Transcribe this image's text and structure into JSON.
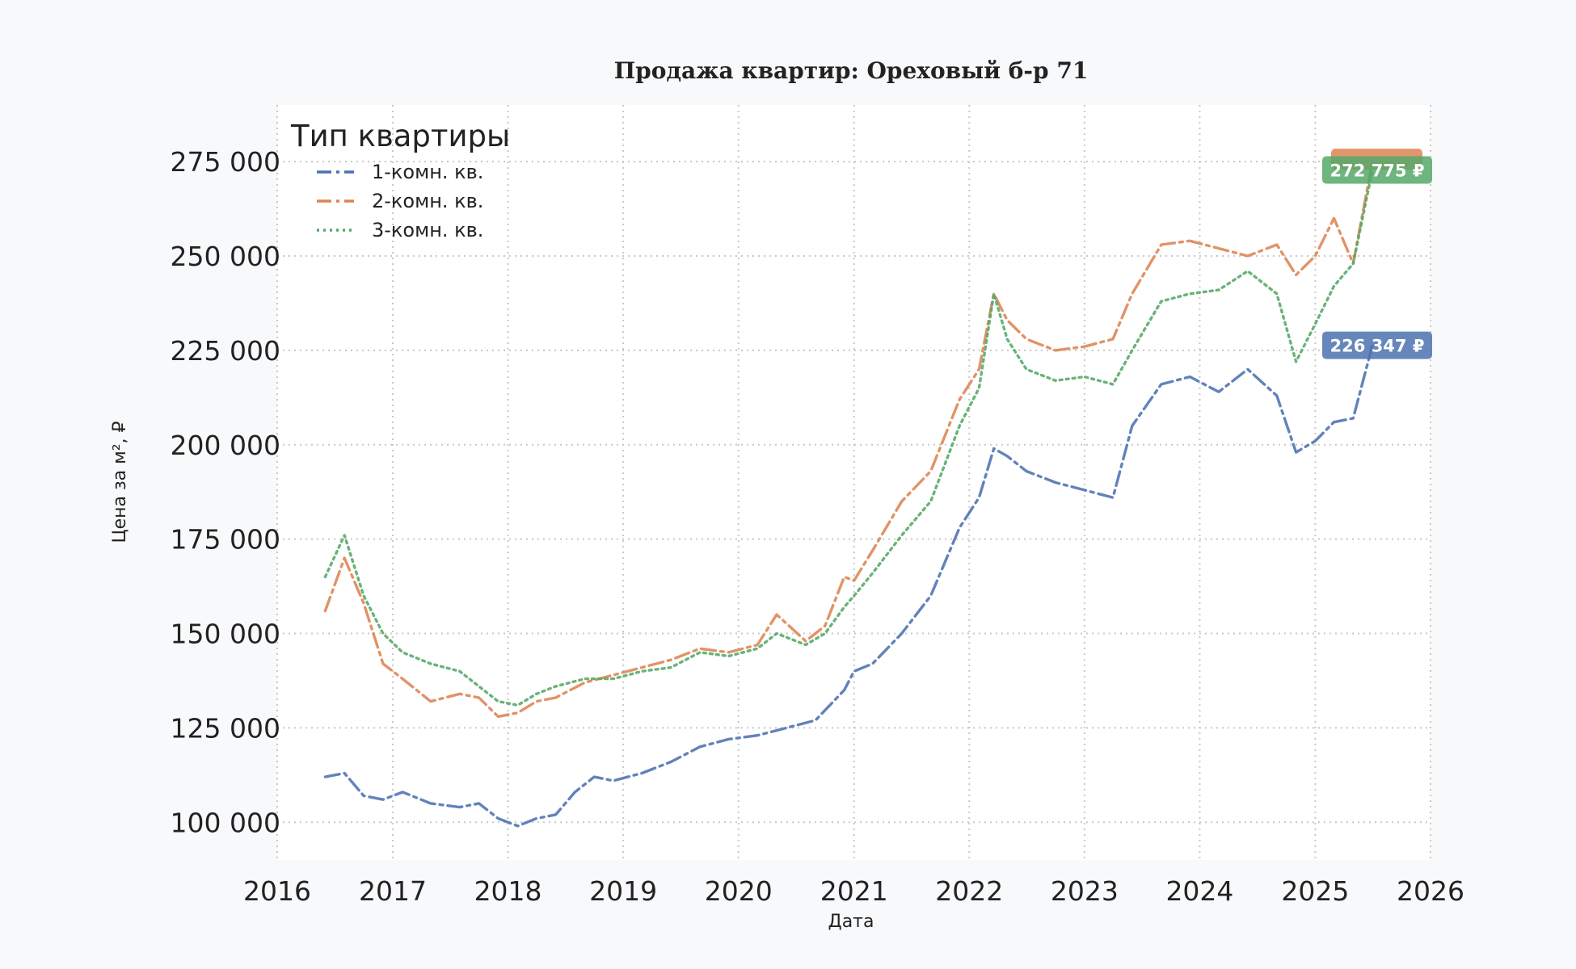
{
  "chart_data": {
    "type": "line",
    "title": "Продажа квартир: Ореховый б-р 71",
    "xlabel": "Дата",
    "ylabel": "Цена за м², ₽",
    "xlim": [
      "2016-01-01",
      "2026-01-01"
    ],
    "ylim": [
      90000,
      290000
    ],
    "x_ticks": [
      "2016",
      "2017",
      "2018",
      "2019",
      "2020",
      "2021",
      "2022",
      "2023",
      "2024",
      "2025",
      "2026"
    ],
    "y_ticks": [
      "100 000",
      "125 000",
      "150 000",
      "175 000",
      "200 000",
      "225 000",
      "250 000",
      "275 000"
    ],
    "grid": true,
    "legend": {
      "title": "Тип квартиры",
      "placement": "top-left"
    },
    "series": [
      {
        "name": "1-комн. кв.",
        "color": "#4c72b0",
        "style": "dashdot",
        "end_label": "226 347 ₽",
        "points": [
          [
            "2016-06-01",
            112000
          ],
          [
            "2016-08-01",
            113000
          ],
          [
            "2016-10-01",
            107000
          ],
          [
            "2016-12-01",
            106000
          ],
          [
            "2017-02-01",
            108000
          ],
          [
            "2017-05-01",
            105000
          ],
          [
            "2017-08-01",
            104000
          ],
          [
            "2017-10-01",
            105000
          ],
          [
            "2017-12-01",
            101000
          ],
          [
            "2018-02-01",
            99000
          ],
          [
            "2018-04-01",
            101000
          ],
          [
            "2018-06-01",
            102000
          ],
          [
            "2018-08-01",
            108000
          ],
          [
            "2018-10-01",
            112000
          ],
          [
            "2018-12-01",
            111000
          ],
          [
            "2019-03-01",
            113000
          ],
          [
            "2019-06-01",
            116000
          ],
          [
            "2019-09-01",
            120000
          ],
          [
            "2019-12-01",
            122000
          ],
          [
            "2020-03-01",
            123000
          ],
          [
            "2020-06-01",
            125000
          ],
          [
            "2020-09-01",
            127000
          ],
          [
            "2020-12-01",
            135000
          ],
          [
            "2021-01-01",
            140000
          ],
          [
            "2021-03-01",
            142000
          ],
          [
            "2021-06-01",
            150000
          ],
          [
            "2021-09-01",
            160000
          ],
          [
            "2021-12-01",
            178000
          ],
          [
            "2022-02-01",
            186000
          ],
          [
            "2022-03-20",
            199000
          ],
          [
            "2022-05-01",
            197000
          ],
          [
            "2022-07-01",
            193000
          ],
          [
            "2022-10-01",
            190000
          ],
          [
            "2023-01-01",
            188000
          ],
          [
            "2023-04-01",
            186000
          ],
          [
            "2023-06-01",
            205000
          ],
          [
            "2023-09-01",
            216000
          ],
          [
            "2023-12-01",
            218000
          ],
          [
            "2024-03-01",
            214000
          ],
          [
            "2024-06-01",
            220000
          ],
          [
            "2024-09-01",
            213000
          ],
          [
            "2024-11-01",
            198000
          ],
          [
            "2025-01-01",
            201000
          ],
          [
            "2025-03-01",
            206000
          ],
          [
            "2025-05-01",
            207000
          ],
          [
            "2025-07-01",
            226347
          ]
        ]
      },
      {
        "name": "2-комн. кв.",
        "color": "#dd8452",
        "style": "dashdot",
        "end_label": "",
        "points": [
          [
            "2016-06-01",
            156000
          ],
          [
            "2016-08-01",
            170000
          ],
          [
            "2016-10-01",
            158000
          ],
          [
            "2016-12-01",
            142000
          ],
          [
            "2017-02-01",
            138000
          ],
          [
            "2017-05-01",
            132000
          ],
          [
            "2017-08-01",
            134000
          ],
          [
            "2017-10-01",
            133000
          ],
          [
            "2017-12-01",
            128000
          ],
          [
            "2018-02-01",
            129000
          ],
          [
            "2018-04-01",
            132000
          ],
          [
            "2018-06-01",
            133000
          ],
          [
            "2018-09-01",
            137000
          ],
          [
            "2018-12-01",
            139000
          ],
          [
            "2019-03-01",
            141000
          ],
          [
            "2019-06-01",
            143000
          ],
          [
            "2019-09-01",
            146000
          ],
          [
            "2019-12-01",
            145000
          ],
          [
            "2020-03-01",
            147000
          ],
          [
            "2020-05-01",
            155000
          ],
          [
            "2020-08-01",
            148000
          ],
          [
            "2020-10-01",
            152000
          ],
          [
            "2020-12-01",
            165000
          ],
          [
            "2021-01-01",
            164000
          ],
          [
            "2021-03-01",
            172000
          ],
          [
            "2021-06-01",
            185000
          ],
          [
            "2021-09-01",
            193000
          ],
          [
            "2021-12-01",
            212000
          ],
          [
            "2022-02-01",
            220000
          ],
          [
            "2022-03-20",
            240000
          ],
          [
            "2022-05-01",
            233000
          ],
          [
            "2022-07-01",
            228000
          ],
          [
            "2022-10-01",
            225000
          ],
          [
            "2023-01-01",
            226000
          ],
          [
            "2023-04-01",
            228000
          ],
          [
            "2023-06-01",
            240000
          ],
          [
            "2023-09-01",
            253000
          ],
          [
            "2023-12-01",
            254000
          ],
          [
            "2024-03-01",
            252000
          ],
          [
            "2024-06-01",
            250000
          ],
          [
            "2024-09-01",
            253000
          ],
          [
            "2024-11-01",
            245000
          ],
          [
            "2025-01-01",
            250000
          ],
          [
            "2025-03-01",
            260000
          ],
          [
            "2025-05-01",
            248000
          ],
          [
            "2025-07-01",
            275000
          ]
        ]
      },
      {
        "name": "3-комн. кв.",
        "color": "#55a868",
        "style": "dotted",
        "end_label": "272 775 ₽",
        "points": [
          [
            "2016-06-01",
            165000
          ],
          [
            "2016-08-01",
            176000
          ],
          [
            "2016-10-01",
            160000
          ],
          [
            "2016-12-01",
            150000
          ],
          [
            "2017-02-01",
            145000
          ],
          [
            "2017-05-01",
            142000
          ],
          [
            "2017-08-01",
            140000
          ],
          [
            "2017-10-01",
            136000
          ],
          [
            "2017-12-01",
            132000
          ],
          [
            "2018-02-01",
            131000
          ],
          [
            "2018-04-01",
            134000
          ],
          [
            "2018-06-01",
            136000
          ],
          [
            "2018-09-01",
            138000
          ],
          [
            "2018-12-01",
            138000
          ],
          [
            "2019-03-01",
            140000
          ],
          [
            "2019-06-01",
            141000
          ],
          [
            "2019-09-01",
            145000
          ],
          [
            "2019-12-01",
            144000
          ],
          [
            "2020-03-01",
            146000
          ],
          [
            "2020-05-01",
            150000
          ],
          [
            "2020-08-01",
            147000
          ],
          [
            "2020-10-01",
            150000
          ],
          [
            "2020-12-01",
            157000
          ],
          [
            "2021-01-01",
            160000
          ],
          [
            "2021-03-01",
            166000
          ],
          [
            "2021-06-01",
            176000
          ],
          [
            "2021-09-01",
            185000
          ],
          [
            "2021-12-01",
            205000
          ],
          [
            "2022-02-01",
            215000
          ],
          [
            "2022-03-20",
            240000
          ],
          [
            "2022-05-01",
            228000
          ],
          [
            "2022-07-01",
            220000
          ],
          [
            "2022-10-01",
            217000
          ],
          [
            "2023-01-01",
            218000
          ],
          [
            "2023-04-01",
            216000
          ],
          [
            "2023-06-01",
            225000
          ],
          [
            "2023-09-01",
            238000
          ],
          [
            "2023-12-01",
            240000
          ],
          [
            "2024-03-01",
            241000
          ],
          [
            "2024-06-01",
            246000
          ],
          [
            "2024-09-01",
            240000
          ],
          [
            "2024-11-01",
            222000
          ],
          [
            "2025-01-01",
            232000
          ],
          [
            "2025-03-01",
            242000
          ],
          [
            "2025-05-01",
            248000
          ],
          [
            "2025-07-01",
            272775
          ]
        ]
      }
    ]
  }
}
